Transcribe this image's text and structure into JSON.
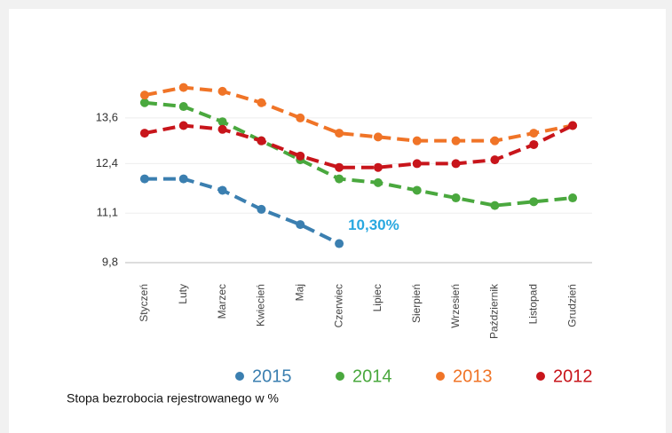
{
  "chart_data": {
    "type": "line",
    "caption": "Stopa bezrobocia rejestrowanego w %",
    "annotation": "10,30%",
    "categories": [
      "Styczeń",
      "Luty",
      "Marzec",
      "Kwiecień",
      "Maj",
      "Czerwiec",
      "Lipiec",
      "Sierpień",
      "Wrzesień",
      "Październik",
      "Listopad",
      "Grudzień"
    ],
    "series": [
      {
        "name": "2015",
        "color": "#3b7fb0",
        "values": [
          12.0,
          12.0,
          11.7,
          11.2,
          10.8,
          10.3,
          null,
          null,
          null,
          null,
          null,
          null
        ]
      },
      {
        "name": "2014",
        "color": "#4aa83e",
        "values": [
          14.0,
          13.9,
          13.5,
          13.0,
          12.5,
          12.0,
          11.9,
          11.7,
          11.5,
          11.3,
          11.4,
          11.5
        ]
      },
      {
        "name": "2013",
        "color": "#f07427",
        "values": [
          14.2,
          14.4,
          14.3,
          14.0,
          13.6,
          13.2,
          13.1,
          13.0,
          13.0,
          13.0,
          13.2,
          13.4
        ]
      },
      {
        "name": "2012",
        "color": "#c8151b",
        "values": [
          13.2,
          13.4,
          13.3,
          13.0,
          12.6,
          12.3,
          12.3,
          12.4,
          12.4,
          12.5,
          12.9,
          13.4
        ]
      }
    ],
    "ylim": [
      9.8,
      14.6
    ],
    "yticks": [
      {
        "value": 9.8,
        "label": "9,8"
      },
      {
        "value": 11.1,
        "label": "11,1"
      },
      {
        "value": 12.4,
        "label": "12,4"
      },
      {
        "value": 13.6,
        "label": "13,6"
      }
    ],
    "annotation_color": "#29a8e0"
  }
}
